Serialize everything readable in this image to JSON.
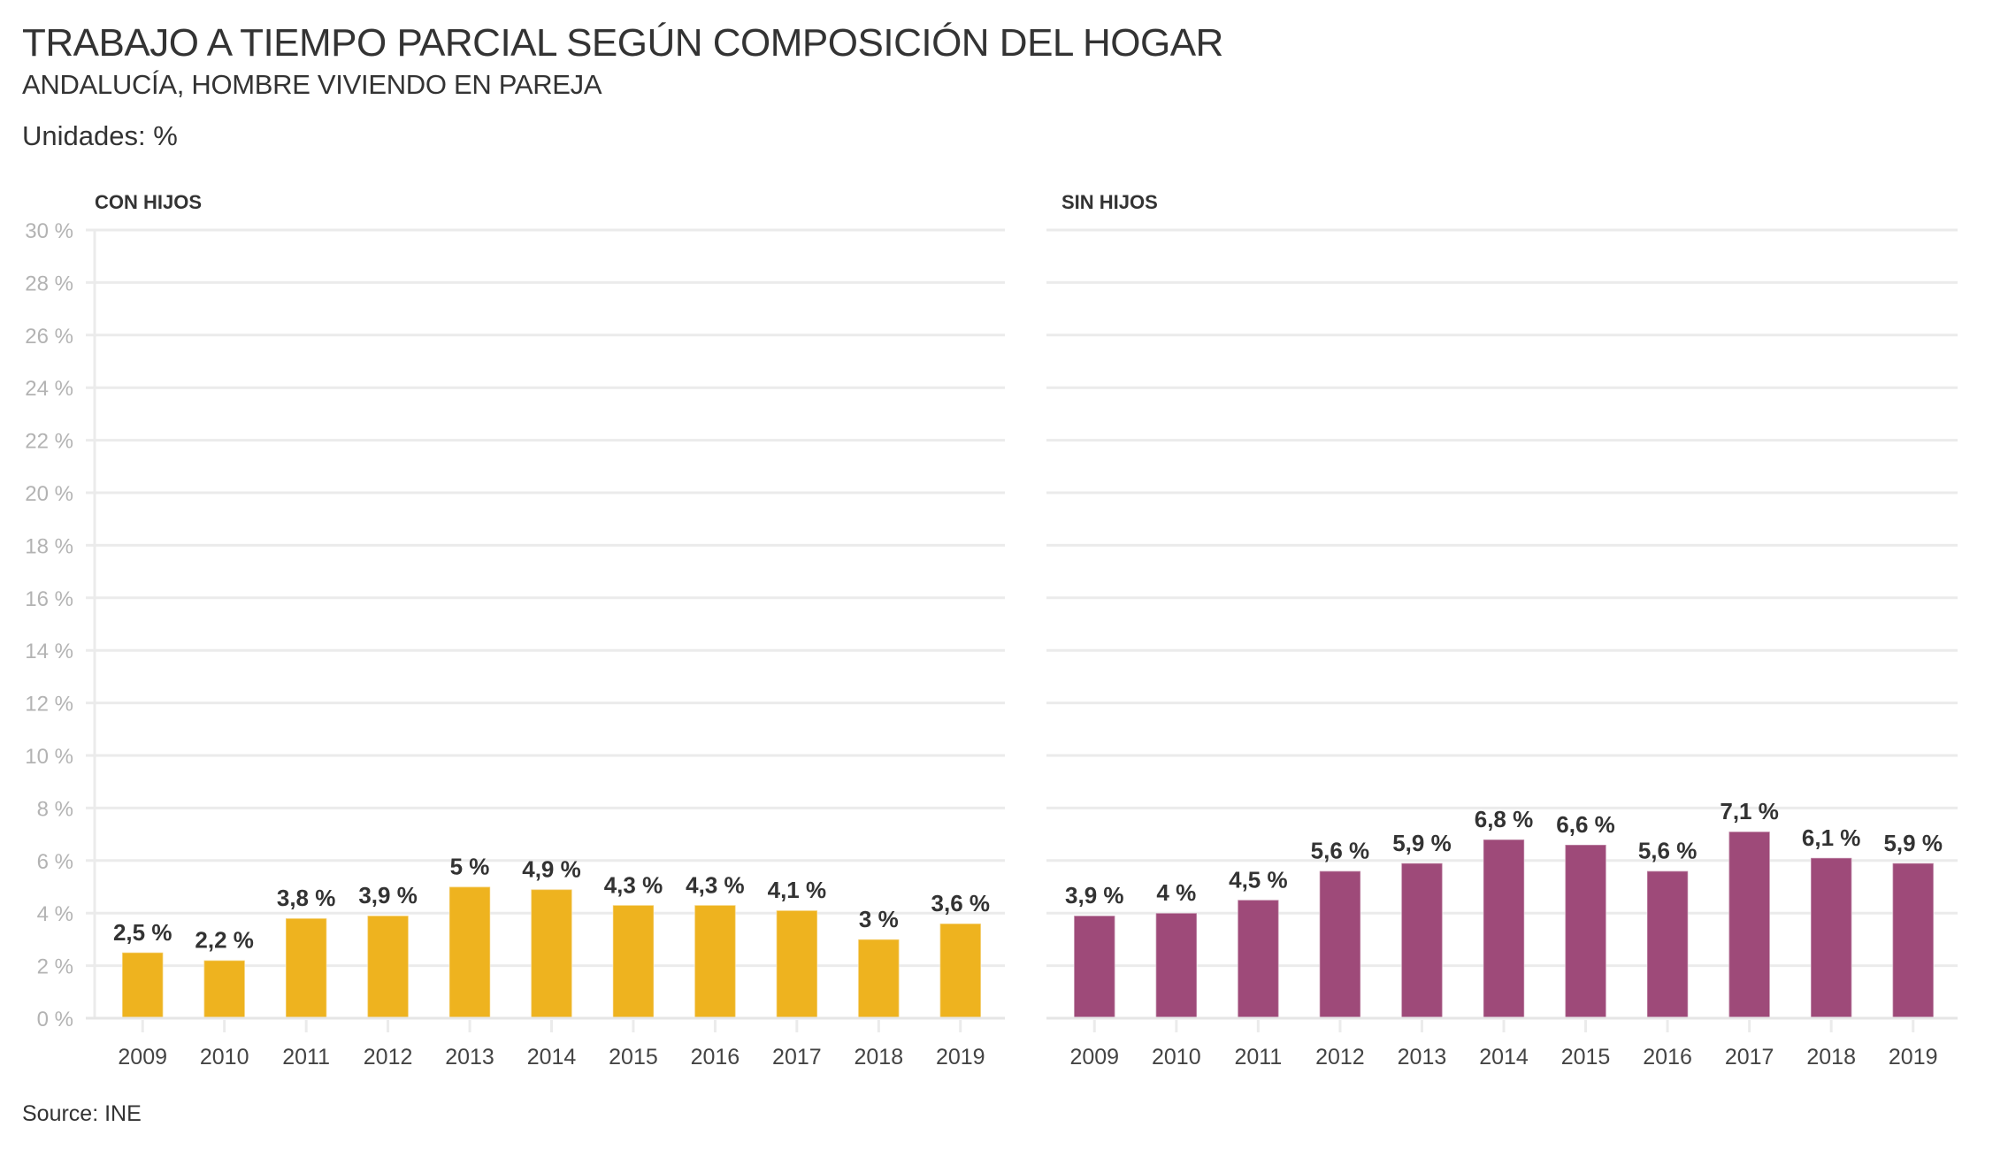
{
  "header": {
    "title": "TRABAJO A TIEMPO PARCIAL SEGÚN COMPOSICIÓN DEL HOGAR",
    "subtitle": "ANDALUCÍA, HOMBRE VIVIENDO EN PAREJA",
    "units": "Unidades: %"
  },
  "footer": {
    "source": "Source: INE"
  },
  "chart_data": [
    {
      "type": "bar",
      "title": "CON HIJOS",
      "xlabel": "",
      "ylabel": "",
      "categories": [
        "2009",
        "2010",
        "2011",
        "2012",
        "2013",
        "2014",
        "2015",
        "2016",
        "2017",
        "2018",
        "2019"
      ],
      "values": [
        2.5,
        2.2,
        3.8,
        3.9,
        5,
        4.9,
        4.3,
        4.3,
        4.1,
        3,
        3.6
      ],
      "data_labels": [
        "2,5 %",
        "2,2 %",
        "3,8 %",
        "3,9 %",
        "5 %",
        "4,9 %",
        "4,3 %",
        "4,3 %",
        "4,1 %",
        "3 %",
        "3,6 %"
      ],
      "color": "#eeb31f",
      "ylim": [
        0,
        30
      ],
      "yticks": [
        0,
        2,
        4,
        6,
        8,
        10,
        12,
        14,
        16,
        18,
        20,
        22,
        24,
        26,
        28,
        30
      ],
      "ytick_labels": [
        "0 %",
        "2 %",
        "4 %",
        "6 %",
        "8 %",
        "10 %",
        "12 %",
        "14 %",
        "16 %",
        "18 %",
        "20 %",
        "22 %",
        "24 %",
        "26 %",
        "28 %",
        "30 %"
      ],
      "grid": true,
      "show_y_labels": true
    },
    {
      "type": "bar",
      "title": "SIN HIJOS",
      "xlabel": "",
      "ylabel": "",
      "categories": [
        "2009",
        "2010",
        "2011",
        "2012",
        "2013",
        "2014",
        "2015",
        "2016",
        "2017",
        "2018",
        "2019"
      ],
      "values": [
        3.9,
        4,
        4.5,
        5.6,
        5.9,
        6.8,
        6.6,
        5.6,
        7.1,
        6.1,
        5.9
      ],
      "data_labels": [
        "3,9 %",
        "4 %",
        "4,5 %",
        "5,6 %",
        "5,9 %",
        "6,8 %",
        "6,6 %",
        "5,6 %",
        "7,1 %",
        "6,1 %",
        "5,9 %"
      ],
      "color": "#9e4a79",
      "ylim": [
        0,
        30
      ],
      "yticks": [
        0,
        2,
        4,
        6,
        8,
        10,
        12,
        14,
        16,
        18,
        20,
        22,
        24,
        26,
        28,
        30
      ],
      "grid": true,
      "show_y_labels": false
    }
  ]
}
